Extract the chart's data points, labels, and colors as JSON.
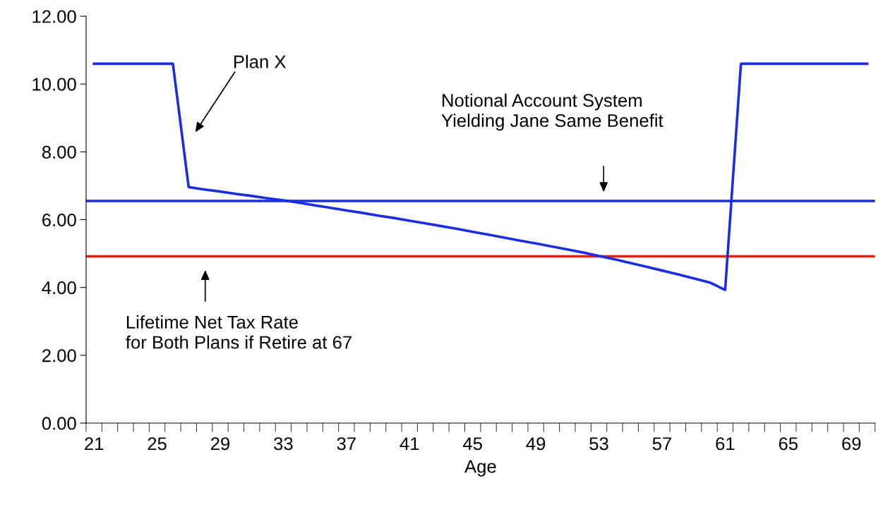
{
  "chart_data": {
    "type": "line",
    "xlabel": "Age",
    "categories": [
      "21",
      null,
      null,
      null,
      "25",
      null,
      null,
      null,
      "29",
      null,
      null,
      null,
      "33",
      null,
      null,
      null,
      "37",
      null,
      null,
      null,
      "41",
      null,
      null,
      null,
      "45",
      null,
      null,
      null,
      "49",
      null,
      null,
      null,
      "53",
      null,
      null,
      null,
      "57",
      null,
      null,
      null,
      "61",
      null,
      null,
      null,
      "65",
      null,
      null,
      null,
      "69",
      null
    ],
    "series": [
      {
        "color": "#1a2de0",
        "values": [
          10.6,
          10.6,
          10.6,
          10.6,
          10.6,
          10.6,
          6.96,
          6.89,
          6.83,
          6.76,
          6.7,
          6.63,
          6.57,
          6.5,
          6.42,
          6.35,
          6.27,
          6.2,
          6.12,
          6.05,
          5.97,
          5.89,
          5.81,
          5.73,
          5.64,
          5.56,
          5.47,
          5.38,
          5.3,
          5.21,
          5.12,
          5.03,
          4.93,
          4.83,
          4.72,
          4.61,
          4.5,
          4.39,
          4.27,
          4.15,
          3.93,
          10.6,
          10.6,
          10.6,
          10.6,
          10.6,
          10.6,
          10.6,
          10.6,
          10.6
        ]
      }
    ],
    "ref_lines": [
      {
        "axis": "y",
        "value": 6.55,
        "color": "#1a2de0"
      },
      {
        "axis": "y",
        "value": 4.92,
        "color": "#e8200c"
      }
    ],
    "ylim": [
      0,
      12
    ],
    "yticks": [
      {
        "value": 0,
        "label": "0.00"
      },
      {
        "value": 2,
        "label": "2.00"
      },
      {
        "value": 4,
        "label": "4.00"
      },
      {
        "value": 6,
        "label": "6.00"
      },
      {
        "value": 8,
        "label": "8.00"
      },
      {
        "value": 10,
        "label": "10.00"
      },
      {
        "value": 12,
        "label": "12.00"
      }
    ],
    "grid": false,
    "marker": "none",
    "line_style": "solid",
    "annotations": [
      "Plan X",
      "Notional Account System\nYielding Jane Same Benefit",
      "Lifetime Net Tax Rate\nfor Both Plans if Retire at 67"
    ]
  }
}
